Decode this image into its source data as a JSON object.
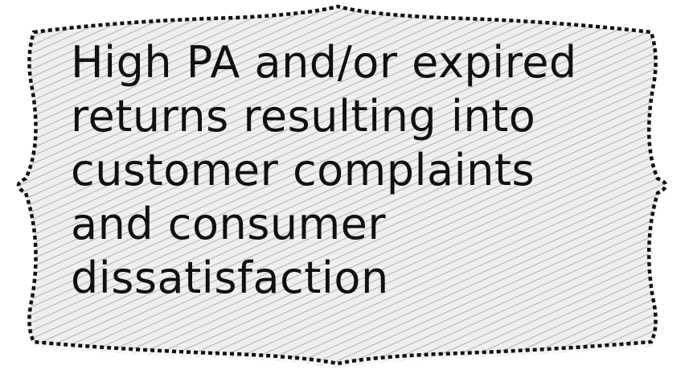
{
  "callout": {
    "lines": [
      "High PA and/or expired",
      "returns resulting into",
      "customer complaints",
      "and consumer",
      "dissatisfaction"
    ]
  },
  "colors": {
    "background": "#ffffff",
    "fill": "#efefef",
    "hatch": "#b5b5b5",
    "border": "#111111",
    "text": "#111111"
  }
}
